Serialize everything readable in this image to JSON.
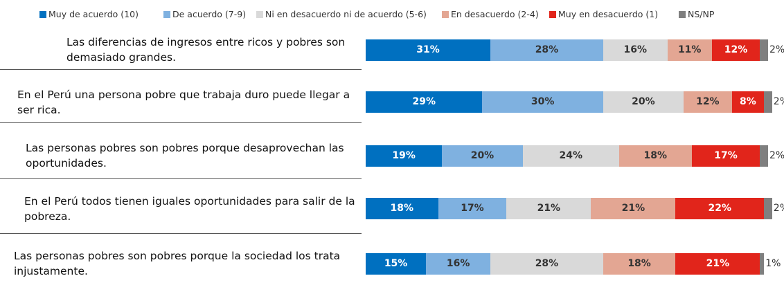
{
  "chart_data": {
    "type": "stacked_bar_horizontal",
    "categories": [
      "Las diferencias de ingresos entre ricos y pobres son demasiado grandes.",
      "En el Perú una persona pobre que trabaja duro puede llegar a ser rica.",
      "Las personas pobres son pobres porque desaprovechan las oportunidades.",
      "En el Perú todos tienen iguales oportunidades para salir de la pobreza.",
      "Las personas pobres son pobres porque la sociedad los trata injustamente."
    ],
    "xlim": [
      0,
      100
    ],
    "series": [
      {
        "name": "Muy de acuerdo (10)",
        "color": "#0070c0",
        "values": [
          31,
          29,
          19,
          18,
          15
        ],
        "value_labels": [
          "31%",
          "29%",
          "19%",
          "18%",
          "15%"
        ]
      },
      {
        "name": "De acuerdo (7-9)",
        "color": "#7fb1e0",
        "values": [
          28,
          30,
          20,
          17,
          16
        ],
        "value_labels": [
          "28%",
          "30%",
          "20%",
          "17%",
          "16%"
        ]
      },
      {
        "name": "Ni en desacuerdo ni de acuerdo (5-6)",
        "color": "#d9d9d9",
        "values": [
          16,
          20,
          24,
          21,
          28
        ],
        "value_labels": [
          "16%",
          "20%",
          "24%",
          "21%",
          "28%"
        ]
      },
      {
        "name": "En desacuerdo (2-4)",
        "color": "#e3a693",
        "values": [
          11,
          12,
          18,
          21,
          18
        ],
        "value_labels": [
          "11%",
          "12%",
          "18%",
          "21%",
          "18%"
        ]
      },
      {
        "name": "Muy en desacuerdo (1)",
        "color": "#e1251b",
        "values": [
          12,
          8,
          17,
          22,
          21
        ],
        "value_labels": [
          "12%",
          "8%",
          "17%",
          "22%",
          "21%"
        ]
      },
      {
        "name": "NS/NP",
        "color": "#7f7f7f",
        "values": [
          2,
          2,
          2,
          2,
          1
        ],
        "value_labels": [
          "2%",
          "2%",
          "2%",
          "2%",
          "1%"
        ]
      }
    ]
  }
}
